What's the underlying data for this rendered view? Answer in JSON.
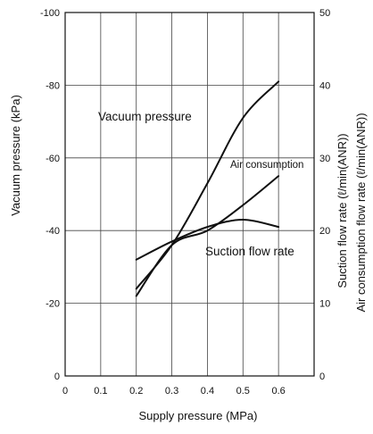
{
  "chart_data": {
    "type": "line",
    "title": "",
    "xlabel": "Supply pressure (MPa)",
    "ylabel_left": "Vacuum pressure (kPa)",
    "ylabel_right_1": "Suction flow rate (ℓ/min(ANR))",
    "ylabel_right_2": "Air consumption flow rate (ℓ/min(ANR))",
    "xlim": [
      0,
      0.7
    ],
    "ylim_left": [
      0,
      -100
    ],
    "ylim_right": [
      0,
      50
    ],
    "x_ticks": [
      "0",
      "0.1",
      "0.2",
      "0.3",
      "0.4",
      "0.5",
      "0.6"
    ],
    "y_left_ticks": [
      "0",
      "-20",
      "-40",
      "-60",
      "-80",
      "-100"
    ],
    "y_right_ticks": [
      "0",
      "10",
      "20",
      "30",
      "40",
      "50"
    ],
    "grid": true,
    "series": [
      {
        "name": "Vacuum pressure",
        "axis": "left",
        "x": [
          0.2,
          0.3,
          0.4,
          0.5,
          0.6
        ],
        "y": [
          -24,
          -36,
          -53,
          -71,
          -81
        ]
      },
      {
        "name": "Air consumption",
        "axis": "right",
        "x": [
          0.2,
          0.3,
          0.4,
          0.5,
          0.6
        ],
        "y": [
          11,
          18,
          20,
          23.5,
          27.5
        ]
      },
      {
        "name": "Suction flow rate",
        "axis": "right",
        "x": [
          0.2,
          0.3,
          0.4,
          0.5,
          0.6
        ],
        "y": [
          16,
          18.5,
          20.5,
          21.5,
          20.5
        ]
      }
    ]
  }
}
